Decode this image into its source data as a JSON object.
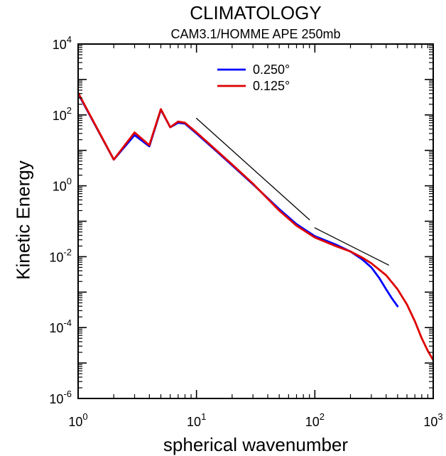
{
  "chart_data": {
    "type": "line",
    "title": "CLIMATOLOGY",
    "subtitle": "CAM3.1/HOMME APE  250mb",
    "xlabel": "spherical wavenumber",
    "ylabel": "Kinetic Energy",
    "x_scale": "log",
    "y_scale": "log",
    "xlim": [
      1,
      1000
    ],
    "ylim": [
      1e-06,
      10000
    ],
    "x_ticks": [
      {
        "value": 1,
        "base": "10",
        "exp": "0"
      },
      {
        "value": 10,
        "base": "10",
        "exp": "1"
      },
      {
        "value": 100,
        "base": "10",
        "exp": "2"
      },
      {
        "value": 1000,
        "base": "10",
        "exp": "3"
      }
    ],
    "y_ticks": [
      {
        "value": 1e-06,
        "base": "10",
        "exp": "-6"
      },
      {
        "value": 0.0001,
        "base": "10",
        "exp": "-4"
      },
      {
        "value": 0.01,
        "base": "10",
        "exp": "-2"
      },
      {
        "value": 1,
        "base": "10",
        "exp": "0"
      },
      {
        "value": 100,
        "base": "10",
        "exp": "2"
      },
      {
        "value": 10000,
        "base": "10",
        "exp": "4"
      }
    ],
    "grid": false,
    "legend_position": "top-center",
    "series": [
      {
        "name": "0.250°",
        "color": "#0000ff",
        "x": [
          1,
          2,
          3,
          4,
          5,
          6,
          7,
          8,
          10,
          15,
          20,
          30,
          50,
          70,
          100,
          150,
          200,
          250,
          300,
          350,
          400,
          450,
          500
        ],
        "y": [
          400,
          5.5,
          27,
          13,
          140,
          45,
          60,
          57,
          30,
          9,
          3.8,
          1.1,
          0.22,
          0.083,
          0.038,
          0.022,
          0.014,
          0.0085,
          0.005,
          0.0025,
          0.0012,
          0.00065,
          0.0004
        ]
      },
      {
        "name": "0.125°",
        "color": "#dd0000",
        "x": [
          1,
          2,
          3,
          4,
          5,
          6,
          7,
          8,
          10,
          15,
          20,
          30,
          50,
          70,
          100,
          150,
          200,
          250,
          300,
          400,
          500,
          600,
          700,
          800,
          900,
          1000
        ],
        "y": [
          420,
          5.5,
          32,
          14,
          145,
          45,
          65,
          60,
          32,
          9.5,
          4,
          1.15,
          0.2,
          0.075,
          0.035,
          0.02,
          0.014,
          0.0095,
          0.0065,
          0.003,
          0.0012,
          0.00045,
          0.00015,
          5e-05,
          2.2e-05,
          1.2e-05
        ]
      },
      {
        "color": "#000000",
        "x": [
          10,
          90
        ],
        "y": [
          80,
          0.11
        ]
      },
      {
        "color": "#000000",
        "x": [
          100,
          420
        ],
        "y": [
          0.065,
          0.0058
        ]
      }
    ]
  }
}
